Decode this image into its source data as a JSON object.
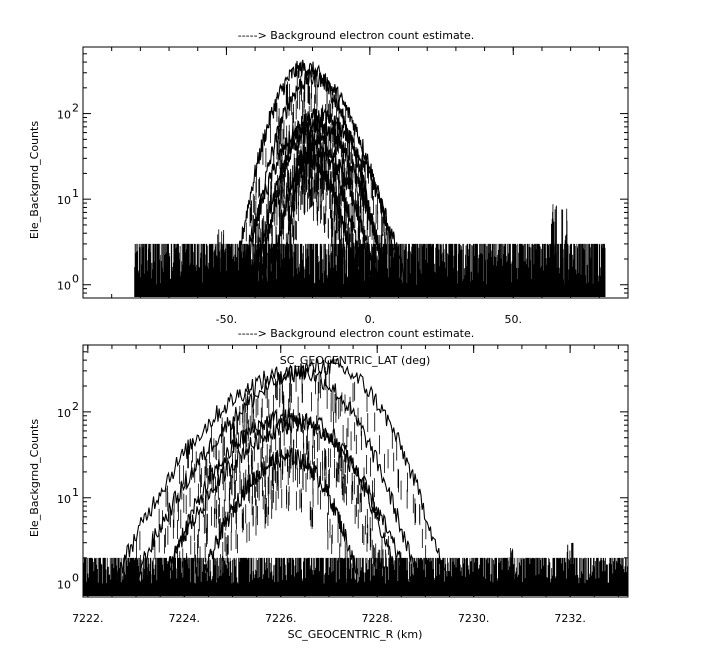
{
  "chart_data": [
    {
      "type": "line",
      "title": "-----> Background electron count estimate.",
      "xlabel": "SC_GEOCENTRIC_LAT (deg)",
      "ylabel": "Ele_Backgrnd_Counts",
      "yscale": "log",
      "xlim": [
        -100,
        90
      ],
      "ylim": [
        0.7,
        600
      ],
      "grid": false,
      "x_ticks": [
        {
          "value": -50,
          "label": "-50."
        },
        {
          "value": 0,
          "label": "0."
        },
        {
          "value": 50,
          "label": "50."
        }
      ],
      "y_ticks": [
        {
          "value": 1,
          "label": "10",
          "exp": "0"
        },
        {
          "value": 10,
          "label": "10",
          "exp": "1"
        },
        {
          "value": 100,
          "label": "10",
          "exp": "2"
        }
      ],
      "noise_floor": {
        "x_range": [
          -82,
          82
        ],
        "y_range": [
          0.7,
          3
        ]
      },
      "series": [
        {
          "peak_x": -23,
          "peak_y": 340,
          "x_range": [
            -47,
            5
          ]
        },
        {
          "peak_x": -20,
          "peak_y": 260,
          "x_range": [
            -43,
            10
          ]
        },
        {
          "peak_x": -18,
          "peak_y": 90,
          "x_range": [
            -45,
            12
          ]
        },
        {
          "peak_x": -20,
          "peak_y": 75,
          "x_range": [
            -40,
            6
          ]
        },
        {
          "peak_x": -22,
          "peak_y": 55,
          "x_range": [
            -38,
            2
          ]
        },
        {
          "peak_x": -20,
          "peak_y": 40,
          "x_range": [
            -34,
            -2
          ]
        },
        {
          "peak_x": -22,
          "peak_y": 30,
          "x_range": [
            -30,
            -5
          ]
        }
      ],
      "outliers": [
        {
          "x": -52,
          "y": 5
        },
        {
          "x": 64,
          "y": 9
        },
        {
          "x": 68,
          "y": 8
        }
      ]
    },
    {
      "type": "line",
      "title": "-----> Background electron count estimate.",
      "xlabel": "SC_GEOCENTRIC_R (km)",
      "ylabel": "Ele_Backgrnd_Counts",
      "yscale": "log",
      "xlim": [
        7221.9,
        7233.2
      ],
      "ylim": [
        0.7,
        600
      ],
      "grid": false,
      "x_ticks": [
        {
          "value": 7222,
          "label": "7222."
        },
        {
          "value": 7224,
          "label": "7224."
        },
        {
          "value": 7226,
          "label": "7226."
        },
        {
          "value": 7228,
          "label": "7228."
        },
        {
          "value": 7230,
          "label": "7230."
        },
        {
          "value": 7232,
          "label": "7232."
        }
      ],
      "y_ticks": [
        {
          "value": 1,
          "label": "10",
          "exp": "0"
        },
        {
          "value": 10,
          "label": "10",
          "exp": "1"
        },
        {
          "value": 100,
          "label": "10",
          "exp": "2"
        }
      ],
      "noise_floor": {
        "x_range": [
          7221.9,
          7233.2
        ],
        "y_range": [
          0.7,
          2
        ]
      },
      "series": [
        {
          "peak_x": 7227.0,
          "peak_y": 340,
          "x_range": [
            7223.0,
            7229.4
          ]
        },
        {
          "peak_x": 7226.4,
          "peak_y": 290,
          "x_range": [
            7222.6,
            7228.8
          ]
        },
        {
          "peak_x": 7226.1,
          "peak_y": 85,
          "x_range": [
            7223.6,
            7228.6
          ]
        },
        {
          "peak_x": 7226.5,
          "peak_y": 75,
          "x_range": [
            7223.6,
            7228.4
          ]
        },
        {
          "peak_x": 7226.2,
          "peak_y": 30,
          "x_range": [
            7224.4,
            7227.6
          ]
        }
      ],
      "outliers": [
        {
          "x": 7230.8,
          "y": 2.8
        },
        {
          "x": 7232.0,
          "y": 3.0
        }
      ]
    }
  ]
}
